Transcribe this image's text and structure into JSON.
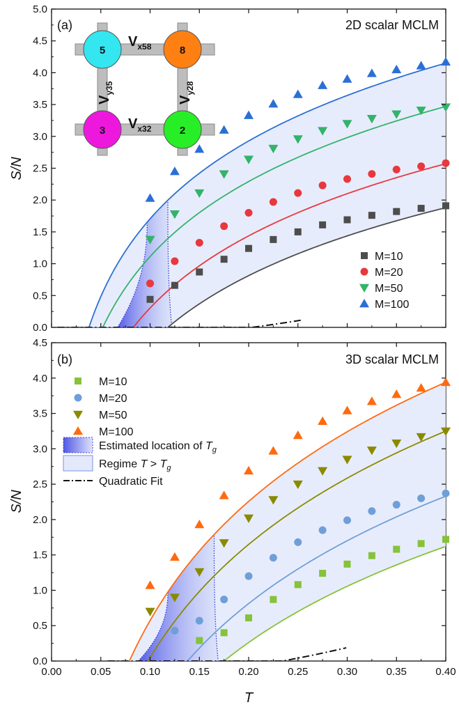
{
  "chart_data": [
    {
      "panel_label": "(a)",
      "title": "2D scalar MCLM",
      "type": "scatter",
      "xlabel": "T",
      "ylabel": "S/N",
      "xlim": [
        0.0,
        0.4
      ],
      "ylim": [
        0.0,
        5.0
      ],
      "x_ticks": [
        "0.00",
        "0.05",
        "0.10",
        "0.15",
        "0.20",
        "0.25",
        "0.30",
        "0.35",
        "0.40"
      ],
      "y_ticks": [
        "0.0",
        "0.5",
        "1.0",
        "1.5",
        "2.0",
        "2.5",
        "3.0",
        "3.5",
        "4.0",
        "4.5",
        "5.0"
      ],
      "legend_position": "bottom-right",
      "series": [
        {
          "name": "M=10",
          "marker": "square",
          "color": "#4d4d4d",
          "x": [
            0.1,
            0.125,
            0.15,
            0.175,
            0.2,
            0.225,
            0.25,
            0.275,
            0.3,
            0.325,
            0.35,
            0.375,
            0.4
          ],
          "y": [
            0.44,
            0.66,
            0.87,
            1.07,
            1.24,
            1.38,
            1.5,
            1.61,
            1.69,
            1.76,
            1.82,
            1.87,
            1.91
          ],
          "fit_T0": 0.118,
          "fit_y_at_040": 1.88
        },
        {
          "name": "M=20",
          "marker": "circle",
          "color": "#e8383d",
          "x": [
            0.1,
            0.125,
            0.15,
            0.175,
            0.2,
            0.225,
            0.25,
            0.275,
            0.3,
            0.325,
            0.35,
            0.375,
            0.4
          ],
          "y": [
            0.69,
            1.04,
            1.33,
            1.59,
            1.8,
            1.97,
            2.11,
            2.23,
            2.33,
            2.41,
            2.48,
            2.53,
            2.58
          ],
          "fit_T0": 0.083,
          "fit_y_at_040": 2.57
        },
        {
          "name": "M=50",
          "marker": "triangle-down",
          "color": "#33b36b",
          "x": [
            0.1,
            0.125,
            0.15,
            0.175,
            0.2,
            0.225,
            0.25,
            0.275,
            0.3,
            0.325,
            0.35,
            0.375,
            0.4
          ],
          "y": [
            1.38,
            1.78,
            2.11,
            2.41,
            2.64,
            2.81,
            2.96,
            3.09,
            3.2,
            3.28,
            3.35,
            3.41,
            3.46
          ],
          "fit_T0": 0.052,
          "fit_y_at_040": 3.47
        },
        {
          "name": "M=100",
          "marker": "triangle-up",
          "color": "#2b6fd6",
          "x": [
            0.1,
            0.125,
            0.15,
            0.175,
            0.2,
            0.225,
            0.25,
            0.275,
            0.3,
            0.325,
            0.35,
            0.375,
            0.4
          ],
          "y": [
            2.03,
            2.45,
            2.8,
            3.1,
            3.33,
            3.51,
            3.66,
            3.8,
            3.9,
            3.99,
            4.05,
            4.11,
            4.17
          ],
          "fit_T0": 0.038,
          "fit_y_at_040": 4.15
        }
      ],
      "quadratic_fit": {
        "a": 5.0,
        "b": -0.03,
        "c": -0.2,
        "x_range": [
          0.006,
          0.255
        ]
      },
      "tg_bounds_x": [
        0.097,
        0.118
      ],
      "inset": {
        "nodes": [
          {
            "label": "5",
            "color": "#33e6f0"
          },
          {
            "label": "8",
            "color": "#ff8012"
          },
          {
            "label": "3",
            "color": "#ee17dd"
          },
          {
            "label": "2",
            "color": "#27ee27"
          }
        ],
        "bonds": [
          {
            "main": "V",
            "sub": "x58"
          },
          {
            "main": "V",
            "sub": "y35"
          },
          {
            "main": "V",
            "sub": "y28"
          },
          {
            "main": "V",
            "sub": "x32"
          }
        ]
      }
    },
    {
      "panel_label": "(b)",
      "title": "3D scalar MCLM",
      "type": "scatter",
      "xlabel": "T",
      "ylabel": "S/N",
      "xlim": [
        0.0,
        0.4
      ],
      "ylim": [
        0.0,
        4.5
      ],
      "x_ticks": [
        "0.00",
        "0.05",
        "0.10",
        "0.15",
        "0.20",
        "0.25",
        "0.30",
        "0.35",
        "0.40"
      ],
      "y_ticks": [
        "0.0",
        "0.5",
        "1.0",
        "1.5",
        "2.0",
        "2.5",
        "3.0",
        "3.5",
        "4.0",
        "4.5"
      ],
      "legend_position": "top-left",
      "series": [
        {
          "name": "M=10",
          "marker": "square",
          "color": "#86c23a",
          "x": [
            0.15,
            0.175,
            0.2,
            0.225,
            0.25,
            0.275,
            0.3,
            0.325,
            0.35,
            0.375,
            0.4
          ],
          "y": [
            0.29,
            0.4,
            0.61,
            0.87,
            1.08,
            1.24,
            1.37,
            1.49,
            1.58,
            1.66,
            1.72
          ],
          "fit_T0": 0.175,
          "fit_y_at_040": 1.62
        },
        {
          "name": "M=20",
          "marker": "circle",
          "color": "#6f9fd8",
          "x": [
            0.125,
            0.15,
            0.175,
            0.2,
            0.225,
            0.25,
            0.275,
            0.3,
            0.325,
            0.35,
            0.375,
            0.4
          ],
          "y": [
            0.43,
            0.57,
            0.87,
            1.2,
            1.46,
            1.68,
            1.85,
            1.99,
            2.12,
            2.21,
            2.3,
            2.37
          ],
          "fit_T0": 0.138,
          "fit_y_at_040": 2.33
        },
        {
          "name": "M=50",
          "marker": "triangle-down",
          "color": "#8a8a00",
          "x": [
            0.1,
            0.125,
            0.15,
            0.175,
            0.2,
            0.225,
            0.25,
            0.275,
            0.3,
            0.325,
            0.35,
            0.375,
            0.4
          ],
          "y": [
            0.7,
            0.9,
            1.26,
            1.67,
            2.02,
            2.28,
            2.5,
            2.69,
            2.85,
            2.98,
            3.08,
            3.17,
            3.25
          ],
          "fit_T0": 0.098,
          "fit_y_at_040": 3.25
        },
        {
          "name": "M=100",
          "marker": "triangle-up",
          "color": "#ff6a0e",
          "x": [
            0.1,
            0.125,
            0.15,
            0.175,
            0.2,
            0.225,
            0.25,
            0.275,
            0.3,
            0.325,
            0.35,
            0.375,
            0.4
          ],
          "y": [
            1.07,
            1.47,
            1.93,
            2.34,
            2.69,
            2.97,
            3.19,
            3.39,
            3.54,
            3.67,
            3.77,
            3.86,
            3.94
          ],
          "fit_T0": 0.079,
          "fit_y_at_040": 3.94
        }
      ],
      "quadratic_fit": {
        "a": 5.5,
        "b": -0.05,
        "c": -0.29,
        "x_range": [
          0.057,
          0.3
        ]
      },
      "tg_bounds_x": [
        0.118,
        0.165
      ],
      "legend_extra": [
        {
          "label": "Estimated location of ",
          "sub_label": "T",
          "sub": "g",
          "kind": "gradient-box"
        },
        {
          "label": "Regime ",
          "sub_label": "T",
          "sub": "g",
          "mid": " > ",
          "kind": "light-box"
        },
        {
          "label": "Quadratic Fit",
          "kind": "dashdot"
        }
      ]
    }
  ]
}
